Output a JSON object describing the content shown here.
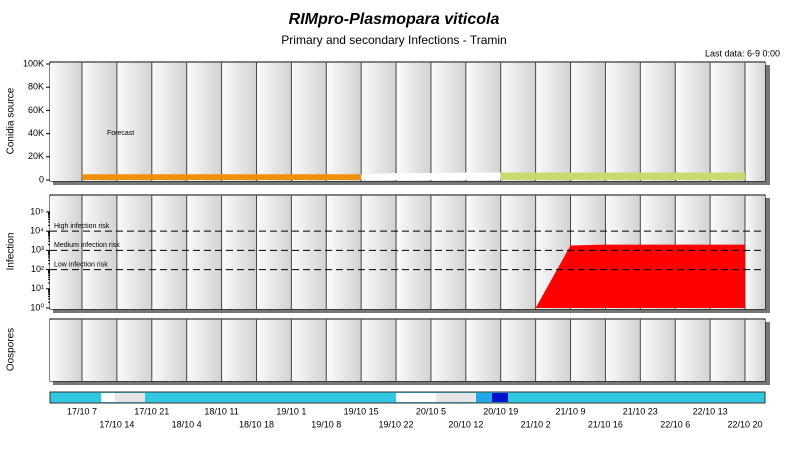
{
  "chart_data": {
    "type": "panels",
    "title": "RIMpro-Plasmopara viticola",
    "subtitle": "Primary and secondary Infections - Tramin",
    "note": "Last data: 6-9 0:00",
    "categories": [
      "17/10 7",
      "17/10 14",
      "17/10 21",
      "18/10 4",
      "18/10 11",
      "18/10 18",
      "19/10 1",
      "19/10 8",
      "19/10 15",
      "19/10 22",
      "20/10 5",
      "20/10 12",
      "20/10 19",
      "21/10 2",
      "21/10 9",
      "21/10 16",
      "21/10 23",
      "22/10 6",
      "22/10 13",
      "22/10 20"
    ],
    "panels": [
      {
        "type": "area",
        "y_label": "Conidia source",
        "ylim": [
          0,
          100000
        ],
        "yticks": [
          0,
          {
            "value": 20000,
            "label": "20K"
          },
          {
            "value": 40000,
            "label": "40K"
          },
          {
            "value": 60000,
            "label": "60K"
          },
          {
            "value": 80000,
            "label": "80K"
          },
          {
            "value": 100000,
            "label": "100K"
          }
        ],
        "annotations": [
          "Forecast"
        ],
        "series": [
          {
            "color": "#f0900a",
            "values": [
              5000,
              5000,
              5000,
              5000,
              5000,
              5000,
              5000,
              5000,
              5000,
              null,
              null,
              null,
              null,
              null,
              null,
              null,
              null,
              null,
              null,
              null
            ]
          },
          {
            "color": "#ffffff",
            "values": [
              null,
              null,
              null,
              null,
              null,
              null,
              null,
              null,
              5000,
              6000,
              6000,
              6500,
              6500,
              null,
              null,
              null,
              null,
              null,
              null,
              null
            ]
          },
          {
            "color": "#c8dc6e",
            "values": [
              null,
              null,
              null,
              null,
              null,
              null,
              null,
              null,
              null,
              null,
              null,
              null,
              6500,
              6500,
              6500,
              6500,
              6500,
              6500,
              6500,
              6500
            ]
          }
        ]
      },
      {
        "type": "area",
        "y_label": "Infection",
        "log": true,
        "ylim": [
          1,
          600000
        ],
        "yticks": [
          {
            "value": 1,
            "label": "10⁰"
          },
          {
            "value": 10,
            "label": "10¹"
          },
          {
            "value": 100,
            "label": "10²"
          },
          {
            "value": 1000,
            "label": "10³"
          },
          {
            "value": 10000,
            "label": "10⁴"
          },
          {
            "value": 100000,
            "label": "10⁵"
          }
        ],
        "thresholds": [
          {
            "value": 10000,
            "label": "High infection risk"
          },
          {
            "value": 1000,
            "label": "Medium infection risk"
          },
          {
            "value": 100,
            "label": "Low infection risk"
          }
        ],
        "series": [
          {
            "color": "#ff0000",
            "values": [
              null,
              null,
              null,
              null,
              null,
              null,
              null,
              null,
              null,
              null,
              null,
              null,
              null,
              1,
              1800,
              2000,
              2000,
              2000,
              2000,
              2000
            ]
          }
        ]
      },
      {
        "type": "area",
        "y_label": "Oospores"
      }
    ]
  }
}
